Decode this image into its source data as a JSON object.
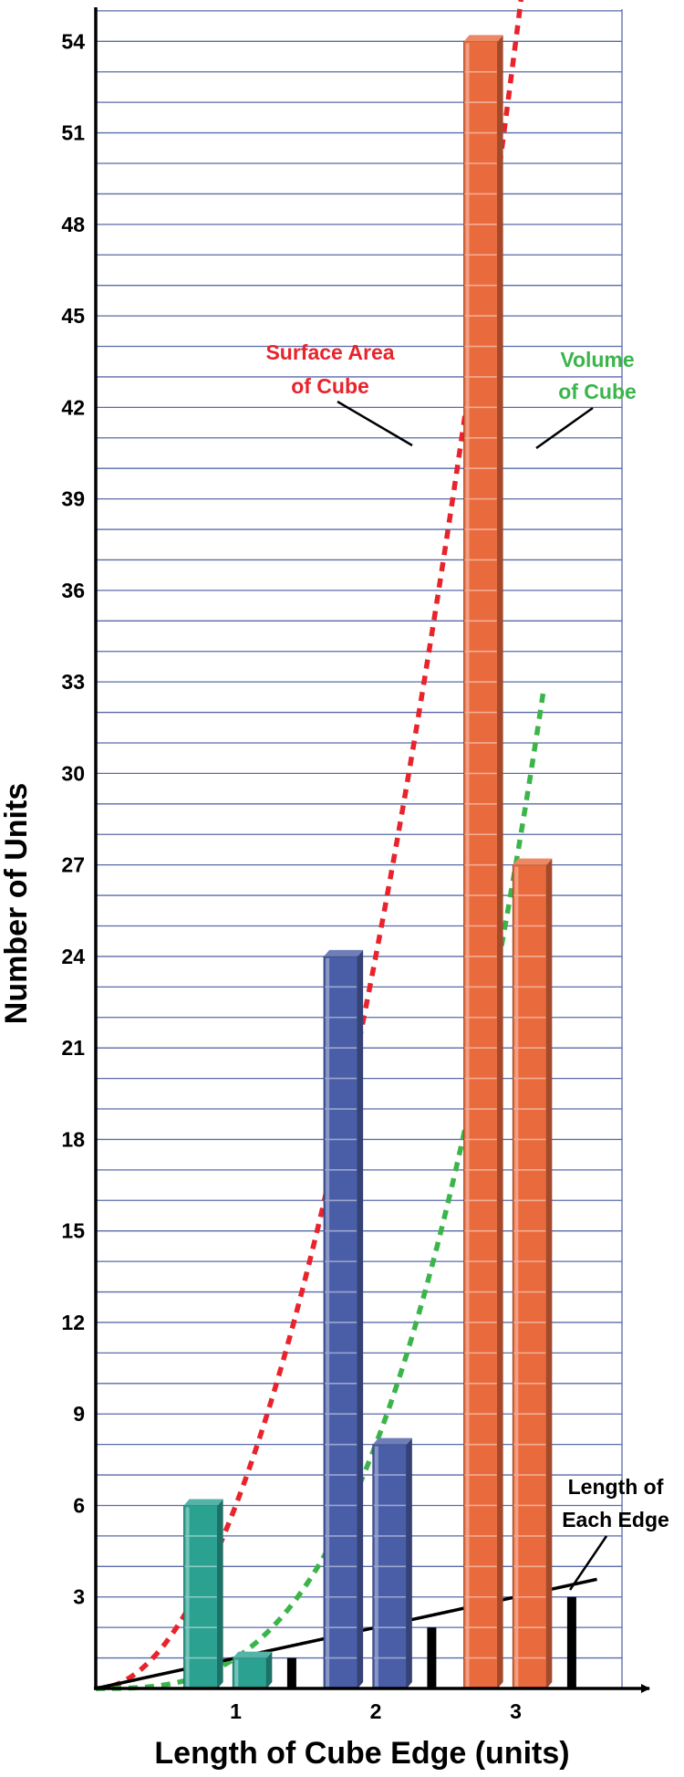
{
  "chart_data": {
    "type": "bar",
    "xlabel": "Length of Cube Edge (units)",
    "ylabel": "Number of Units",
    "categories": [
      "1",
      "2",
      "3"
    ],
    "x_ticks": [
      1,
      2,
      3
    ],
    "y_ticks": [
      3,
      6,
      9,
      12,
      15,
      18,
      21,
      24,
      27,
      30,
      33,
      36,
      39,
      42,
      45,
      48,
      51,
      54
    ],
    "ylim": [
      0,
      55
    ],
    "xlim": [
      0,
      3.7
    ],
    "grid": "horizontal every 1 unit",
    "series": [
      {
        "values": [
          6,
          24,
          54
        ],
        "colors": [
          "#2aa191",
          "#4a5ea8",
          "#e96a3d"
        ]
      },
      {
        "values": [
          1,
          8,
          27
        ],
        "colors": [
          "#2aa191",
          "#4a5ea8",
          "#e96a3d"
        ]
      },
      {
        "values": [
          1,
          2,
          3
        ]
      }
    ],
    "curves": [
      {
        "formula": "6x^2",
        "color": "#e8232b",
        "style": "dotted"
      },
      {
        "formula": "x^3",
        "color": "#3bb54a",
        "style": "dotted"
      },
      {
        "formula": "x",
        "color": "#000000",
        "style": "solid"
      }
    ],
    "annotations": [
      {
        "lines": [
          "Surface Area",
          "of Cube"
        ],
        "color": "#e8232b"
      },
      {
        "lines": [
          "Volume",
          "of Cube"
        ],
        "color": "#3bb54a"
      },
      {
        "lines": [
          "Length of",
          "Each Edge"
        ],
        "color": "#000000"
      }
    ]
  }
}
